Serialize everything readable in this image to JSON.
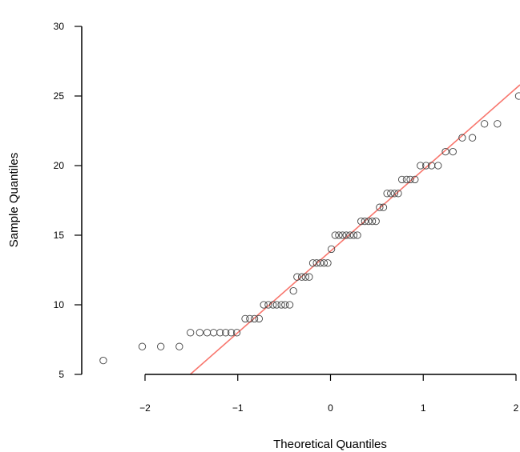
{
  "chart_data": {
    "type": "scatter",
    "xlabel": "Theoretical Quantiles",
    "ylabel": "Sample Quantiles",
    "xlim": [
      -2.6,
      2.05
    ],
    "ylim": [
      5,
      30
    ],
    "x_ticks": [
      "−2",
      "−1",
      "0",
      "1",
      "2"
    ],
    "x_tick_values": [
      -2,
      -1,
      0,
      1,
      2
    ],
    "y_ticks": [
      "5",
      "10",
      "15",
      "20",
      "25",
      "30"
    ],
    "y_tick_values": [
      5,
      10,
      15,
      20,
      25,
      30
    ],
    "reference_line": {
      "intercept": 13.85,
      "slope": 5.85,
      "color": "#f8766d"
    },
    "point_color": "#444444",
    "points": [
      {
        "x": -2.45,
        "y": 6
      },
      {
        "x": -2.03,
        "y": 7
      },
      {
        "x": -1.83,
        "y": 7
      },
      {
        "x": -1.63,
        "y": 7
      },
      {
        "x": -1.51,
        "y": 8
      },
      {
        "x": -1.41,
        "y": 8
      },
      {
        "x": -1.33,
        "y": 8
      },
      {
        "x": -1.26,
        "y": 8
      },
      {
        "x": -1.19,
        "y": 8
      },
      {
        "x": -1.13,
        "y": 8
      },
      {
        "x": -1.07,
        "y": 8
      },
      {
        "x": -1.01,
        "y": 8
      },
      {
        "x": -0.92,
        "y": 9
      },
      {
        "x": -0.87,
        "y": 9
      },
      {
        "x": -0.82,
        "y": 9
      },
      {
        "x": -0.77,
        "y": 9
      },
      {
        "x": -0.72,
        "y": 10
      },
      {
        "x": -0.67,
        "y": 10
      },
      {
        "x": -0.62,
        "y": 10
      },
      {
        "x": -0.58,
        "y": 10
      },
      {
        "x": -0.53,
        "y": 10
      },
      {
        "x": -0.49,
        "y": 10
      },
      {
        "x": -0.44,
        "y": 10
      },
      {
        "x": -0.4,
        "y": 11
      },
      {
        "x": -0.36,
        "y": 12
      },
      {
        "x": -0.31,
        "y": 12
      },
      {
        "x": -0.27,
        "y": 12
      },
      {
        "x": -0.23,
        "y": 12
      },
      {
        "x": -0.19,
        "y": 13
      },
      {
        "x": -0.15,
        "y": 13
      },
      {
        "x": -0.11,
        "y": 13
      },
      {
        "x": -0.07,
        "y": 13
      },
      {
        "x": -0.03,
        "y": 13
      },
      {
        "x": 0.01,
        "y": 14
      },
      {
        "x": 0.05,
        "y": 15
      },
      {
        "x": 0.09,
        "y": 15
      },
      {
        "x": 0.13,
        "y": 15
      },
      {
        "x": 0.17,
        "y": 15
      },
      {
        "x": 0.21,
        "y": 15
      },
      {
        "x": 0.25,
        "y": 15
      },
      {
        "x": 0.29,
        "y": 15
      },
      {
        "x": 0.33,
        "y": 16
      },
      {
        "x": 0.37,
        "y": 16
      },
      {
        "x": 0.41,
        "y": 16
      },
      {
        "x": 0.45,
        "y": 16
      },
      {
        "x": 0.49,
        "y": 16
      },
      {
        "x": 0.53,
        "y": 17
      },
      {
        "x": 0.57,
        "y": 17
      },
      {
        "x": 0.61,
        "y": 18
      },
      {
        "x": 0.65,
        "y": 18
      },
      {
        "x": 0.69,
        "y": 18
      },
      {
        "x": 0.73,
        "y": 18
      },
      {
        "x": 0.77,
        "y": 19
      },
      {
        "x": 0.82,
        "y": 19
      },
      {
        "x": 0.86,
        "y": 19
      },
      {
        "x": 0.91,
        "y": 19
      },
      {
        "x": 0.97,
        "y": 20
      },
      {
        "x": 1.03,
        "y": 20
      },
      {
        "x": 1.09,
        "y": 20
      },
      {
        "x": 1.16,
        "y": 20
      },
      {
        "x": 1.24,
        "y": 21
      },
      {
        "x": 1.32,
        "y": 21
      },
      {
        "x": 1.42,
        "y": 22
      },
      {
        "x": 1.53,
        "y": 22
      },
      {
        "x": 1.66,
        "y": 23
      },
      {
        "x": 1.8,
        "y": 23
      },
      {
        "x": 2.03,
        "y": 25
      }
    ]
  }
}
